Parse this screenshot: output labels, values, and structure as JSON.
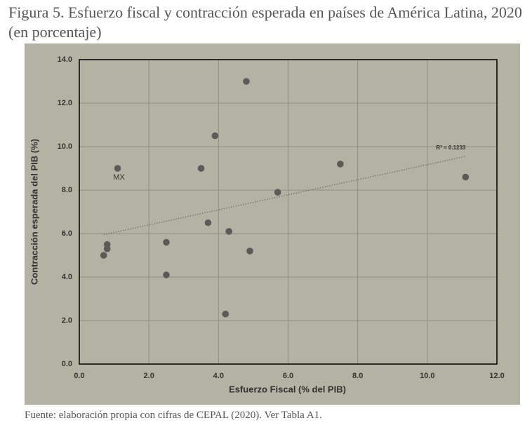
{
  "chart_data": {
    "type": "scatter",
    "title": "Figura 5. Esfuerzo fiscal y contracción esperada en países de América Latina, 2020 (en porcentaje)",
    "x_label": "Esfuerzo Fiscal (% del PIB)",
    "y_label": "Contracción esperada del PIB (%)",
    "source": "Fuente: elaboración propia con cifras de CEPAL (2020). Ver Tabla A1.",
    "x": [
      0.7,
      0.8,
      0.8,
      1.1,
      2.5,
      2.5,
      3.5,
      3.7,
      3.9,
      4.2,
      4.3,
      4.8,
      4.9,
      5.7,
      7.5,
      11.1
    ],
    "values": [
      5.0,
      5.3,
      5.5,
      9.0,
      5.6,
      4.1,
      9.0,
      6.5,
      10.5,
      2.3,
      6.1,
      13.0,
      5.2,
      7.9,
      9.2,
      8.6
    ],
    "color": "#5a5a58",
    "annotations": [
      {
        "text": "MX",
        "x": 1.1,
        "y": 9.0
      }
    ],
    "trendline": {
      "x": [
        0.7,
        11.1
      ],
      "y": [
        5.95,
        9.55
      ],
      "label": "R² = 0.1233",
      "color": "#6e6e66"
    },
    "xlim": [
      0,
      12
    ],
    "ylim": [
      0,
      14
    ],
    "xticks": [
      {
        "value": 0,
        "label": "0.0"
      },
      {
        "value": 2,
        "label": "2.0"
      },
      {
        "value": 4,
        "label": "4.0"
      },
      {
        "value": 6,
        "label": "6.0"
      },
      {
        "value": 8,
        "label": "8.0"
      },
      {
        "value": 10,
        "label": "10.0"
      },
      {
        "value": 12,
        "label": "12.0"
      }
    ],
    "yticks": [
      {
        "value": 0,
        "label": "0.0"
      },
      {
        "value": 2,
        "label": "2.0"
      },
      {
        "value": 4,
        "label": "4.0"
      },
      {
        "value": 6,
        "label": "6.0"
      },
      {
        "value": 8,
        "label": "8.0"
      },
      {
        "value": 10,
        "label": "10.0"
      },
      {
        "value": 12,
        "label": "12.0"
      },
      {
        "value": 14,
        "label": "14.0"
      }
    ],
    "grid": true
  }
}
